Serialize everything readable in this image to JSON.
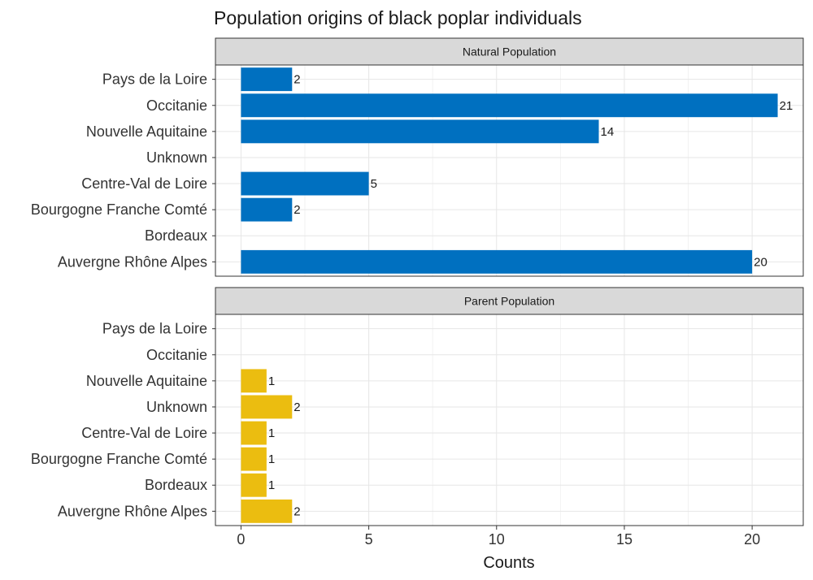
{
  "chart_data": {
    "type": "bar",
    "orientation": "horizontal",
    "title": "Population origins of black poplar individuals",
    "xlabel": "Counts",
    "ylabel": "",
    "xlim": [
      -1,
      22
    ],
    "x_ticks": [
      0,
      5,
      10,
      15,
      20
    ],
    "grid": true,
    "categories": [
      "Pays de la Loire",
      "Occitanie",
      "Nouvelle Aquitaine",
      "Unknown",
      "Centre-Val de Loire",
      "Bourgogne Franche Comté",
      "Bordeaux",
      "Auvergne Rhône Alpes"
    ],
    "facets": [
      {
        "label": "Natural Population",
        "color": "#0070C0",
        "values": [
          2,
          21,
          14,
          null,
          5,
          2,
          null,
          20
        ]
      },
      {
        "label": "Parent Population",
        "color": "#EBBD10",
        "values": [
          null,
          null,
          1,
          2,
          1,
          1,
          1,
          2
        ]
      }
    ]
  }
}
